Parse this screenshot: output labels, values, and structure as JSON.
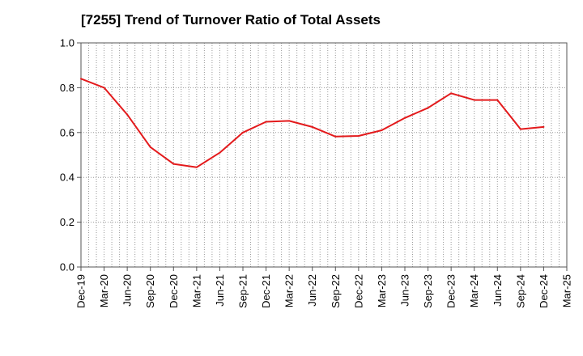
{
  "chart_data": {
    "type": "line",
    "title": "[7255]  Trend of Turnover Ratio of Total Assets",
    "xlabel": "",
    "ylabel": "",
    "ylim": [
      0.0,
      1.0
    ],
    "yticks": [
      "0.0",
      "0.2",
      "0.4",
      "0.6",
      "0.8",
      "1.0"
    ],
    "ytick_values": [
      0.0,
      0.2,
      0.4,
      0.6,
      0.8,
      1.0
    ],
    "categories": [
      "Dec-19",
      "Mar-20",
      "Jun-20",
      "Sep-20",
      "Dec-20",
      "Mar-21",
      "Jun-21",
      "Sep-21",
      "Dec-21",
      "Mar-22",
      "Jun-22",
      "Sep-22",
      "Dec-22",
      "Mar-23",
      "Jun-23",
      "Sep-23",
      "Dec-23",
      "Mar-24",
      "Jun-24",
      "Sep-24",
      "Dec-24",
      "Mar-25"
    ],
    "grid": true,
    "series": [
      {
        "color": "#e31a1c",
        "values": [
          0.84,
          0.8,
          0.68,
          0.535,
          0.46,
          0.445,
          0.51,
          0.6,
          0.648,
          0.652,
          0.625,
          0.582,
          0.585,
          0.61,
          0.665,
          0.71,
          0.775,
          0.745,
          0.745,
          0.615,
          0.625,
          null
        ]
      }
    ]
  }
}
